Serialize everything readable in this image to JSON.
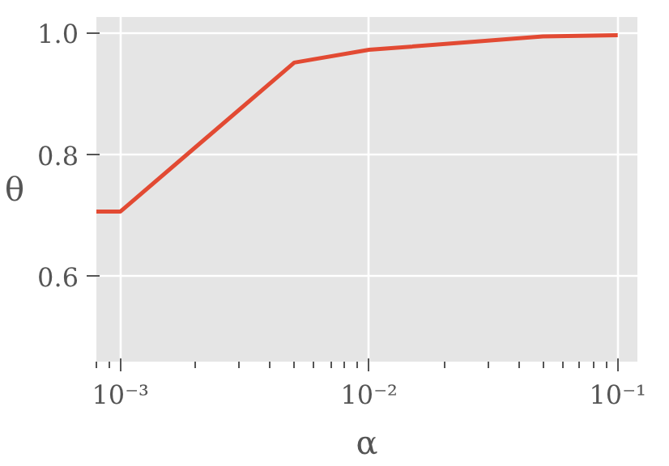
{
  "chart_data": {
    "type": "line",
    "xlabel": "α",
    "ylabel": "θ",
    "x": [
      0.0008,
      0.001,
      0.005,
      0.01,
      0.05,
      0.1
    ],
    "series": [
      {
        "color": "#e24a33",
        "values": [
          0.707,
          0.707,
          0.952,
          0.973,
          0.995,
          0.997
        ]
      }
    ],
    "log": "x",
    "xlim": [
      0.0008,
      0.12
    ],
    "ylim": [
      0.46,
      1.027
    ],
    "xticks": [
      {
        "value": 0.001,
        "label": "10⁻³"
      },
      {
        "value": 0.01,
        "label": "10⁻²"
      },
      {
        "value": 0.1,
        "label": "10⁻¹"
      }
    ],
    "yticks": [
      {
        "value": 0.6,
        "label": "0.6"
      },
      {
        "value": 0.8,
        "label": "0.8"
      },
      {
        "value": 1.0,
        "label": "1.0"
      }
    ],
    "grid": true,
    "marker": "none",
    "line_style": "solid"
  }
}
